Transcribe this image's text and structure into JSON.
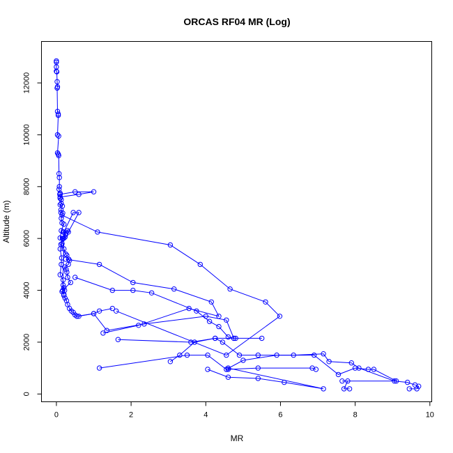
{
  "chart_data": {
    "type": "line",
    "title": "ORCAS RF04 MR (Log)",
    "xlabel": "MR",
    "ylabel": "Altitude (m)",
    "xlim": [
      -0.4,
      10.05
    ],
    "ylim": [
      -300,
      13600
    ],
    "xticks": [
      0,
      2,
      4,
      6,
      8,
      10
    ],
    "yticks": [
      0,
      2000,
      4000,
      6000,
      8000,
      10000,
      12000
    ],
    "grid": false,
    "legend": "none",
    "line_color": "#0000ff",
    "marker": "open-circle",
    "series": [
      {
        "x": [
          0.0,
          0.0,
          0.0,
          0.0,
          0.01,
          0.02,
          0.03,
          0.02,
          0.03,
          0.05,
          0.05,
          0.03,
          0.06,
          0.03,
          0.05,
          0.06,
          0.07,
          0.08,
          0.08,
          0.07,
          0.1,
          0.09,
          0.1,
          0.13,
          0.13,
          0.1,
          0.16,
          0.12,
          0.12,
          0.17,
          0.13,
          0.15,
          0.2,
          0.13,
          0.1,
          0.16,
          0.12,
          0.2,
          0.25,
          0.28,
          0.33,
          0.35,
          0.32,
          0.22,
          0.26,
          0.28,
          0.3,
          0.38,
          0.17,
          0.2,
          0.23,
          0.25,
          0.18,
          0.3,
          0.32,
          0.6,
          0.45,
          0.2,
          0.25,
          0.18,
          0.15,
          0.1,
          0.14,
          0.13,
          0.1,
          0.18,
          0.18,
          0.2,
          0.22,
          0.15,
          0.2,
          0.2,
          0.23,
          0.27,
          0.3,
          0.35,
          0.4,
          0.45,
          0.5,
          0.55,
          0.6,
          1.0,
          1.15,
          1.5
        ],
        "y": [
          12850,
          12800,
          12620,
          12450,
          12430,
          12050,
          11850,
          11800,
          10900,
          10800,
          10750,
          10000,
          9950,
          9300,
          9250,
          9200,
          8500,
          8350,
          8000,
          7900,
          7750,
          7700,
          7550,
          7500,
          7350,
          7300,
          7250,
          7100,
          7000,
          6980,
          6780,
          6600,
          6550,
          6300,
          6020,
          6000,
          5770,
          5600,
          5400,
          5350,
          5200,
          5150,
          5000,
          4900,
          4800,
          4700,
          4500,
          4300,
          4000,
          6010,
          6050,
          6150,
          6250,
          6300,
          6250,
          7000,
          7000,
          6250,
          6200,
          6000,
          5800,
          5600,
          5250,
          5000,
          4600,
          4400,
          4200,
          4100,
          4000,
          3950,
          3850,
          3800,
          3700,
          3600,
          3450,
          3300,
          3200,
          3150,
          3050,
          3000,
          3000,
          3100,
          3200,
          3300
        ]
      },
      {
        "x": [
          0.1,
          0.5,
          1.0,
          0.6,
          0.1
        ],
        "y": [
          7700,
          7800,
          7800,
          7700,
          7600
        ]
      },
      {
        "x": [
          0.15,
          1.1,
          3.05,
          3.85,
          4.65,
          5.6,
          5.98,
          4.55,
          1.6
        ],
        "y": [
          6900,
          6250,
          5750,
          5000,
          4050,
          3550,
          3000,
          1500,
          3200
        ]
      },
      {
        "x": [
          0.25,
          1.15,
          2.05,
          3.15,
          4.15,
          4.35,
          3.55,
          2.2,
          1.25
        ],
        "y": [
          5200,
          5000,
          4300,
          4050,
          3550,
          3000,
          3300,
          2650,
          2350
        ]
      },
      {
        "x": [
          0.5,
          1.5,
          2.05,
          2.55,
          3.75,
          4.1,
          4.35,
          4.6,
          4.75,
          4.8
        ],
        "y": [
          4500,
          4000,
          4000,
          3900,
          3200,
          2800,
          2600,
          2200,
          2150,
          2150
        ]
      },
      {
        "x": [
          0.55,
          1.0,
          1.35,
          2.35,
          4.0,
          4.55,
          4.75,
          5.5,
          4.25,
          3.7,
          3.3,
          3.05
        ],
        "y": [
          3000,
          3100,
          2450,
          2700,
          3000,
          2850,
          2150,
          2150,
          2150,
          2000,
          1500,
          1250
        ]
      },
      {
        "x": [
          1.65,
          3.6,
          4.25,
          4.45,
          4.9,
          5.4,
          6.35,
          7.15,
          7.3,
          7.9,
          8.1,
          9.05,
          9.4,
          9.6,
          9.7,
          9.65,
          9.45
        ],
        "y": [
          2100,
          2000,
          2150,
          2000,
          1500,
          1500,
          1500,
          1550,
          1250,
          1200,
          1000,
          500,
          450,
          350,
          300,
          200,
          200
        ]
      },
      {
        "x": [
          1.15,
          3.5,
          4.05,
          4.55,
          5.0,
          5.9,
          6.9,
          7.55,
          8.0,
          8.35,
          8.5,
          9.1,
          7.65,
          7.8,
          7.7,
          7.85
        ],
        "y": [
          1000,
          1500,
          1500,
          950,
          1300,
          1500,
          1500,
          750,
          1000,
          950,
          950,
          500,
          500,
          500,
          200,
          200
        ]
      },
      {
        "x": [
          4.05,
          4.6,
          5.4,
          6.1,
          7.15,
          4.6,
          4.6,
          5.4,
          6.85,
          6.95
        ],
        "y": [
          950,
          650,
          600,
          450,
          200,
          1000,
          950,
          1000,
          1000,
          950
        ]
      }
    ]
  }
}
